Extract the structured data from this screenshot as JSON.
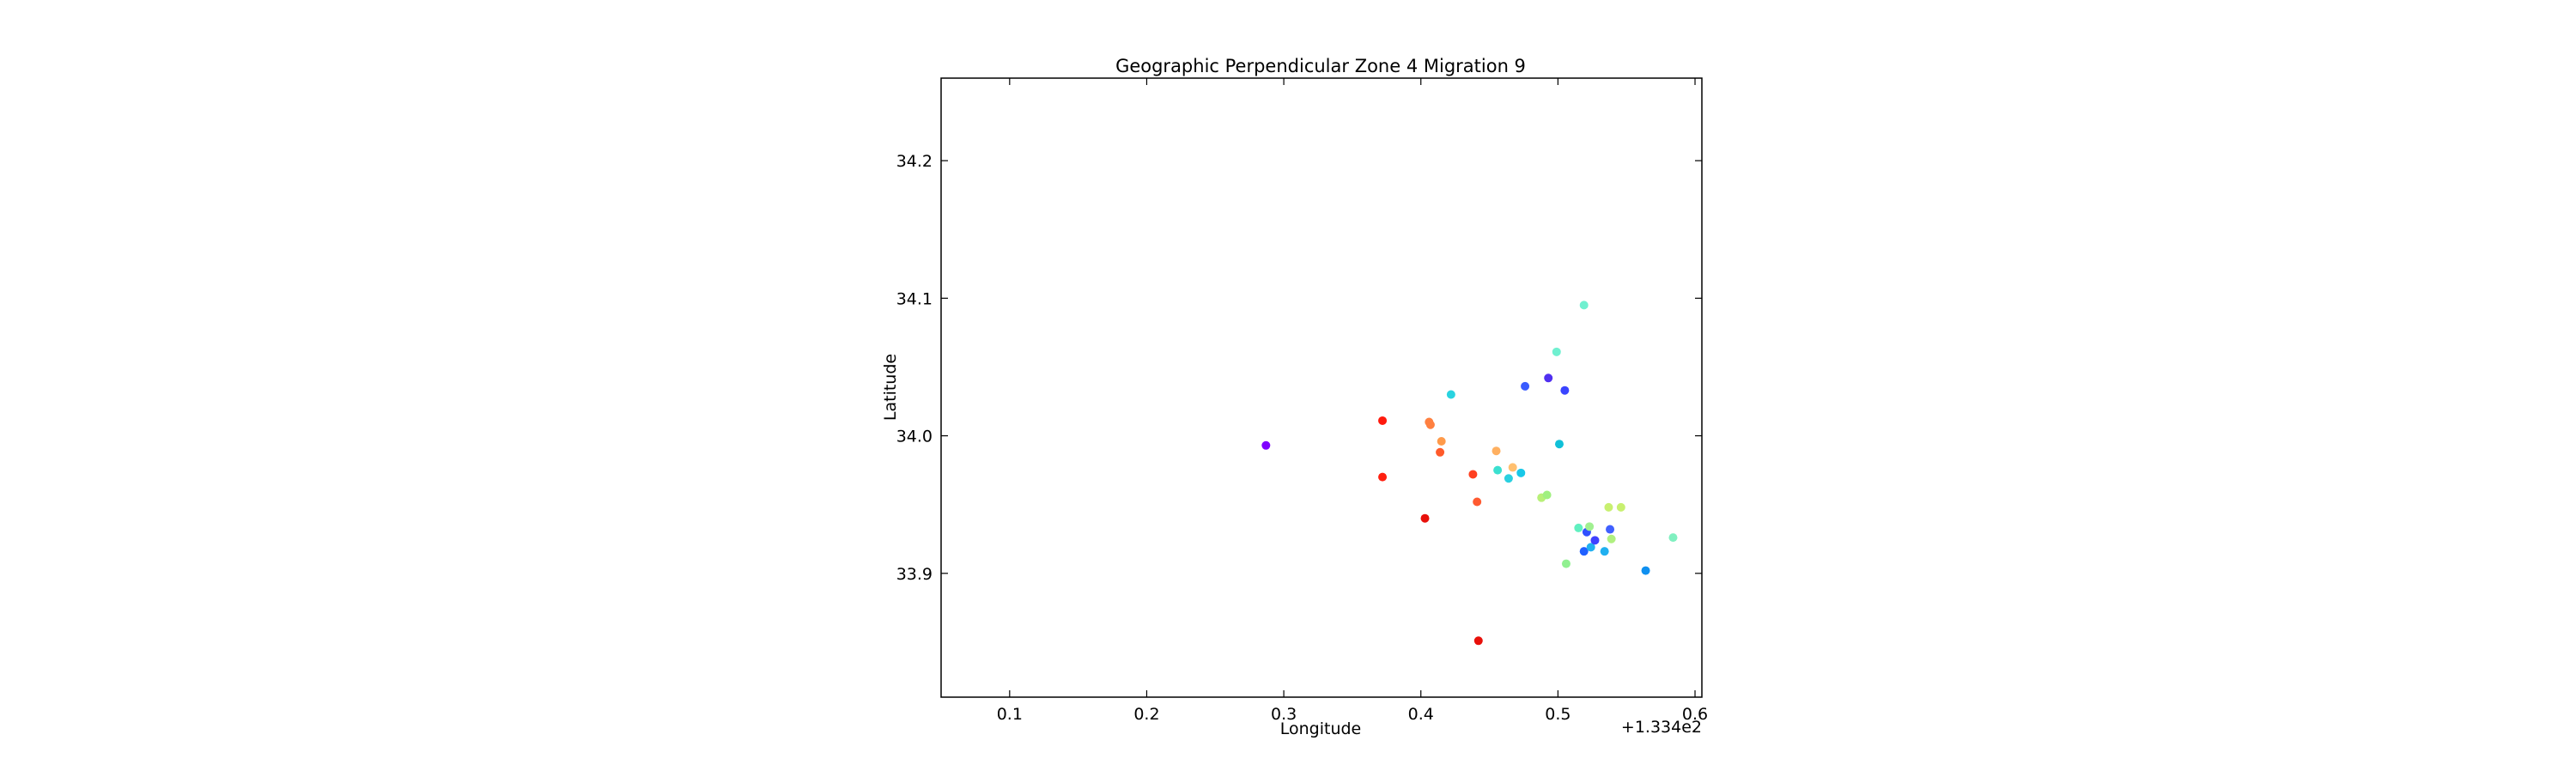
{
  "chart_data": {
    "type": "scatter",
    "title": "Geographic Perpendicular Zone 4 Migration 9",
    "xlabel": "Longitude",
    "ylabel": "Latitude",
    "x_offset_label": "+1.334e2",
    "xlim": [
      133.45,
      134.005
    ],
    "ylim": [
      33.81,
      34.26
    ],
    "x_ticks": [
      {
        "value": 133.5,
        "label": "0.1"
      },
      {
        "value": 133.6,
        "label": "0.2"
      },
      {
        "value": 133.7,
        "label": "0.3"
      },
      {
        "value": 133.8,
        "label": "0.4"
      },
      {
        "value": 133.9,
        "label": "0.5"
      },
      {
        "value": 134.0,
        "label": "0.6"
      }
    ],
    "y_ticks": [
      {
        "value": 33.9,
        "label": "33.9"
      },
      {
        "value": 34.0,
        "label": "34.0"
      },
      {
        "value": 34.1,
        "label": "34.1"
      },
      {
        "value": 34.2,
        "label": "34.2"
      }
    ],
    "grid": false,
    "points": [
      {
        "x": 133.687,
        "y": 33.993,
        "color": "#7f00ff"
      },
      {
        "x": 133.772,
        "y": 34.011,
        "color": "#ff1a0d"
      },
      {
        "x": 133.772,
        "y": 33.97,
        "color": "#ff2010"
      },
      {
        "x": 133.803,
        "y": 33.94,
        "color": "#e8100a"
      },
      {
        "x": 133.806,
        "y": 34.01,
        "color": "#ff8040"
      },
      {
        "x": 133.807,
        "y": 34.008,
        "color": "#ff8040"
      },
      {
        "x": 133.815,
        "y": 33.996,
        "color": "#ff9a4a"
      },
      {
        "x": 133.814,
        "y": 33.988,
        "color": "#ff5a2a"
      },
      {
        "x": 133.822,
        "y": 34.03,
        "color": "#29d3e0"
      },
      {
        "x": 133.838,
        "y": 33.972,
        "color": "#ff4020"
      },
      {
        "x": 133.841,
        "y": 33.952,
        "color": "#ff5a30"
      },
      {
        "x": 133.842,
        "y": 33.851,
        "color": "#e8100a"
      },
      {
        "x": 133.855,
        "y": 33.989,
        "color": "#ffb060"
      },
      {
        "x": 133.856,
        "y": 33.975,
        "color": "#3be0d0"
      },
      {
        "x": 133.864,
        "y": 33.969,
        "color": "#2ad0e0"
      },
      {
        "x": 133.867,
        "y": 33.977,
        "color": "#ffc070"
      },
      {
        "x": 133.873,
        "y": 33.973,
        "color": "#18c8e8"
      },
      {
        "x": 133.876,
        "y": 34.036,
        "color": "#3a5cff"
      },
      {
        "x": 133.888,
        "y": 33.955,
        "color": "#b8f078"
      },
      {
        "x": 133.892,
        "y": 33.957,
        "color": "#a0f080"
      },
      {
        "x": 133.893,
        "y": 34.042,
        "color": "#5030f0"
      },
      {
        "x": 133.899,
        "y": 34.061,
        "color": "#70f0d0"
      },
      {
        "x": 133.901,
        "y": 33.994,
        "color": "#10c0d8"
      },
      {
        "x": 133.905,
        "y": 34.033,
        "color": "#3a44ff"
      },
      {
        "x": 133.906,
        "y": 33.907,
        "color": "#90f090"
      },
      {
        "x": 133.915,
        "y": 33.933,
        "color": "#60f0c0"
      },
      {
        "x": 133.919,
        "y": 34.095,
        "color": "#70f0d0"
      },
      {
        "x": 133.919,
        "y": 33.916,
        "color": "#2060ff"
      },
      {
        "x": 133.921,
        "y": 33.93,
        "color": "#3050ff"
      },
      {
        "x": 133.923,
        "y": 33.934,
        "color": "#a0f090"
      },
      {
        "x": 133.924,
        "y": 33.919,
        "color": "#20b0f0"
      },
      {
        "x": 133.927,
        "y": 33.924,
        "color": "#4040ff"
      },
      {
        "x": 133.934,
        "y": 33.916,
        "color": "#20b0f0"
      },
      {
        "x": 133.937,
        "y": 33.948,
        "color": "#c8f070"
      },
      {
        "x": 133.938,
        "y": 33.932,
        "color": "#4060ff"
      },
      {
        "x": 133.939,
        "y": 33.925,
        "color": "#b0f080"
      },
      {
        "x": 133.946,
        "y": 33.948,
        "color": "#c8f070"
      },
      {
        "x": 133.964,
        "y": 33.902,
        "color": "#1090f0"
      },
      {
        "x": 133.984,
        "y": 33.926,
        "color": "#80f0c0"
      }
    ]
  }
}
